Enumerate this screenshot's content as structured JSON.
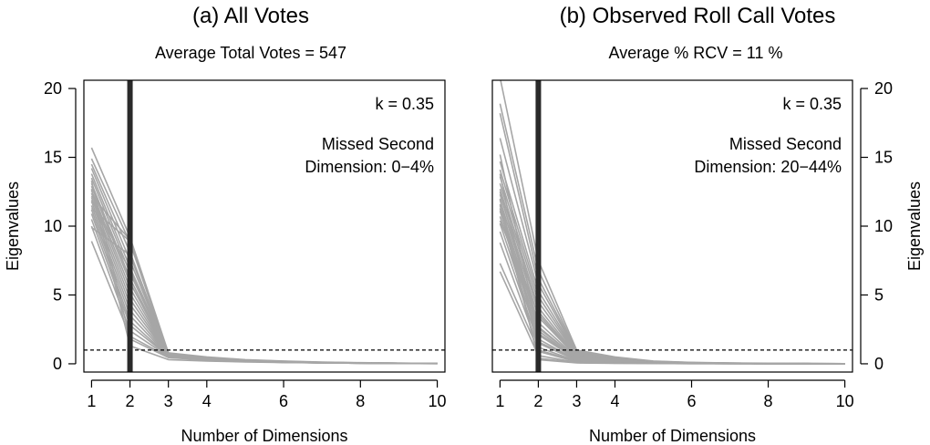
{
  "chart_data": [
    {
      "type": "line",
      "title": "(a) All Votes",
      "subtitle": "Average Total Votes  =  547",
      "xlabel": "Number of Dimensions",
      "ylabel": "Eigenvalues",
      "xlim": [
        0.8,
        10.2
      ],
      "ylim": [
        -0.6,
        20.6
      ],
      "xticks": [
        1,
        2,
        3,
        4,
        6,
        8,
        10
      ],
      "yticks": [
        0,
        5,
        10,
        15,
        20
      ],
      "yaxis_side": "left",
      "reference_line_y": 1,
      "highlight_dimension_x": 2,
      "annotation_k": "k =  0.35",
      "annotation_missed": [
        "Missed Second",
        "Dimension:  0−4%"
      ],
      "line_color": "#a6a6a6",
      "highlight_color": "#2a2a2a",
      "x": [
        1,
        2,
        3,
        4,
        5,
        6,
        7,
        8,
        9,
        10
      ],
      "series": [
        {
          "values": [
            15.7,
            9.2,
            0.8,
            0.5,
            0.3,
            0.2,
            0.12,
            0.08,
            0.05,
            0.03
          ]
        },
        {
          "values": [
            14.9,
            8.8,
            0.7,
            0.45,
            0.28,
            0.18,
            0.11,
            0.07,
            0.05,
            0.03
          ]
        },
        {
          "values": [
            14.5,
            8.1,
            0.75,
            0.42,
            0.26,
            0.17,
            0.1,
            0.07,
            0.04,
            0.03
          ]
        },
        {
          "values": [
            14.2,
            7.5,
            0.7,
            0.4,
            0.25,
            0.16,
            0.1,
            0.06,
            0.04,
            0.02
          ]
        },
        {
          "values": [
            13.8,
            7.0,
            0.72,
            0.4,
            0.25,
            0.15,
            0.09,
            0.06,
            0.04,
            0.02
          ]
        },
        {
          "values": [
            13.5,
            6.6,
            0.68,
            0.38,
            0.24,
            0.15,
            0.09,
            0.06,
            0.04,
            0.02
          ]
        },
        {
          "values": [
            13.1,
            6.2,
            0.66,
            0.38,
            0.23,
            0.14,
            0.09,
            0.06,
            0.03,
            0.02
          ]
        },
        {
          "values": [
            12.9,
            5.9,
            0.65,
            0.36,
            0.22,
            0.14,
            0.09,
            0.05,
            0.03,
            0.02
          ]
        },
        {
          "values": [
            12.6,
            5.5,
            0.64,
            0.35,
            0.22,
            0.13,
            0.08,
            0.05,
            0.03,
            0.02
          ]
        },
        {
          "values": [
            12.4,
            5.1,
            0.62,
            0.35,
            0.21,
            0.13,
            0.08,
            0.05,
            0.03,
            0.02
          ]
        },
        {
          "values": [
            12.1,
            4.7,
            0.6,
            0.34,
            0.2,
            0.13,
            0.08,
            0.05,
            0.03,
            0.02
          ]
        },
        {
          "values": [
            11.8,
            4.3,
            0.6,
            0.33,
            0.2,
            0.12,
            0.08,
            0.05,
            0.03,
            0.02
          ]
        },
        {
          "values": [
            11.5,
            3.9,
            0.58,
            0.32,
            0.19,
            0.12,
            0.07,
            0.05,
            0.03,
            0.02
          ]
        },
        {
          "values": [
            11.2,
            3.5,
            0.56,
            0.31,
            0.19,
            0.12,
            0.07,
            0.04,
            0.03,
            0.02
          ]
        },
        {
          "values": [
            10.9,
            3.1,
            0.55,
            0.3,
            0.18,
            0.11,
            0.07,
            0.04,
            0.03,
            0.02
          ]
        },
        {
          "values": [
            10.5,
            2.8,
            0.54,
            0.3,
            0.18,
            0.11,
            0.07,
            0.04,
            0.03,
            0.02
          ]
        },
        {
          "values": [
            10.0,
            2.4,
            0.52,
            0.29,
            0.17,
            0.11,
            0.07,
            0.04,
            0.02,
            0.02
          ]
        },
        {
          "values": [
            11.3,
            8.9,
            0.7,
            0.4,
            0.24,
            0.15,
            0.09,
            0.06,
            0.04,
            0.02
          ]
        },
        {
          "values": [
            12.2,
            9.0,
            0.74,
            0.42,
            0.25,
            0.16,
            0.1,
            0.06,
            0.04,
            0.02
          ]
        },
        {
          "values": [
            9.9,
            7.9,
            0.66,
            0.38,
            0.22,
            0.14,
            0.09,
            0.05,
            0.03,
            0.02
          ]
        },
        {
          "values": [
            8.9,
            2.0,
            0.5,
            0.28,
            0.17,
            0.1,
            0.06,
            0.04,
            0.02,
            0.02
          ]
        },
        {
          "values": [
            12.7,
            1.3,
            0.3,
            0.2,
            0.13,
            0.09,
            0.06,
            0.04,
            0.02,
            0.01
          ]
        },
        {
          "values": [
            13.3,
            1.8,
            0.45,
            0.27,
            0.16,
            0.1,
            0.06,
            0.04,
            0.02,
            0.01
          ]
        },
        {
          "values": [
            11.9,
            6.8,
            0.63,
            0.35,
            0.21,
            0.13,
            0.08,
            0.05,
            0.03,
            0.02
          ]
        }
      ]
    },
    {
      "type": "line",
      "title": "(b) Observed Roll Call Votes",
      "subtitle": "Average % RCV  =  11 %",
      "xlabel": "Number of Dimensions",
      "ylabel": "Eigenvalues",
      "xlim": [
        0.8,
        10.2
      ],
      "ylim": [
        -0.6,
        20.6
      ],
      "xticks": [
        1,
        2,
        3,
        4,
        6,
        8,
        10
      ],
      "yticks": [
        0,
        5,
        10,
        15,
        20
      ],
      "yaxis_side": "right",
      "reference_line_y": 1,
      "highlight_dimension_x": 2,
      "annotation_k": "k =  0.35",
      "annotation_missed": [
        "Missed Second",
        "Dimension: 20−44%"
      ],
      "line_color": "#a6a6a6",
      "highlight_color": "#2a2a2a",
      "x": [
        1,
        2,
        3,
        4,
        5,
        6,
        7,
        8,
        9,
        10
      ],
      "series": [
        {
          "values": [
            20.8,
            7.5,
            1.0,
            0.5,
            0.2,
            0.1,
            0.06,
            0.04,
            0.02,
            0.01
          ]
        },
        {
          "values": [
            18.9,
            6.8,
            0.9,
            0.45,
            0.18,
            0.09,
            0.05,
            0.03,
            0.02,
            0.01
          ]
        },
        {
          "values": [
            18.2,
            6.2,
            0.85,
            0.4,
            0.16,
            0.08,
            0.05,
            0.03,
            0.02,
            0.01
          ]
        },
        {
          "values": [
            16.4,
            5.8,
            0.8,
            0.38,
            0.15,
            0.08,
            0.05,
            0.03,
            0.02,
            0.01
          ]
        },
        {
          "values": [
            14.7,
            5.3,
            0.75,
            0.35,
            0.14,
            0.07,
            0.04,
            0.03,
            0.02,
            0.01
          ]
        },
        {
          "values": [
            14.1,
            4.9,
            0.7,
            0.32,
            0.13,
            0.07,
            0.04,
            0.02,
            0.01,
            0.01
          ]
        },
        {
          "values": [
            13.6,
            4.5,
            0.65,
            0.3,
            0.12,
            0.06,
            0.04,
            0.02,
            0.01,
            0.01
          ]
        },
        {
          "values": [
            13.1,
            4.1,
            0.6,
            0.28,
            0.11,
            0.06,
            0.03,
            0.02,
            0.01,
            0.01
          ]
        },
        {
          "values": [
            12.7,
            3.8,
            0.55,
            0.26,
            0.1,
            0.05,
            0.03,
            0.02,
            0.01,
            0.01
          ]
        },
        {
          "values": [
            12.3,
            3.4,
            0.5,
            0.24,
            0.09,
            0.05,
            0.03,
            0.02,
            0.01,
            0.01
          ]
        },
        {
          "values": [
            11.9,
            3.0,
            0.45,
            0.22,
            0.09,
            0.05,
            0.03,
            0.02,
            0.01,
            0.01
          ]
        },
        {
          "values": [
            11.5,
            2.7,
            0.4,
            0.2,
            0.08,
            0.04,
            0.03,
            0.02,
            0.01,
            0.01
          ]
        },
        {
          "values": [
            11.1,
            2.4,
            0.36,
            0.18,
            0.07,
            0.04,
            0.02,
            0.01,
            0.01,
            0.01
          ]
        },
        {
          "values": [
            10.7,
            2.1,
            0.32,
            0.16,
            0.07,
            0.04,
            0.02,
            0.01,
            0.01,
            0.01
          ]
        },
        {
          "values": [
            10.2,
            1.8,
            0.28,
            0.14,
            0.06,
            0.03,
            0.02,
            0.01,
            0.01,
            0.01
          ]
        },
        {
          "values": [
            9.6,
            1.5,
            0.25,
            0.12,
            0.05,
            0.03,
            0.02,
            0.01,
            0.01,
            0.0
          ]
        },
        {
          "values": [
            8.8,
            1.2,
            0.2,
            0.1,
            0.05,
            0.03,
            0.02,
            0.01,
            0.01,
            0.0
          ]
        },
        {
          "values": [
            7.3,
            1.0,
            0.18,
            0.09,
            0.04,
            0.02,
            0.01,
            0.01,
            0.0,
            0.0
          ]
        },
        {
          "values": [
            6.7,
            0.6,
            0.1,
            0.06,
            0.03,
            0.02,
            0.01,
            0.01,
            0.0,
            0.0
          ]
        },
        {
          "values": [
            12.0,
            0.3,
            0.06,
            0.03,
            0.02,
            0.01,
            0.01,
            0.0,
            0.0,
            0.0
          ]
        },
        {
          "values": [
            13.8,
            0.9,
            0.15,
            0.08,
            0.04,
            0.02,
            0.01,
            0.01,
            0.0,
            0.0
          ]
        },
        {
          "values": [
            11.6,
            1.6,
            0.3,
            0.15,
            0.06,
            0.03,
            0.02,
            0.01,
            0.01,
            0.0
          ]
        },
        {
          "values": [
            12.5,
            2.6,
            0.42,
            0.2,
            0.08,
            0.04,
            0.02,
            0.01,
            0.01,
            0.0
          ]
        },
        {
          "values": [
            10.4,
            3.6,
            0.52,
            0.25,
            0.1,
            0.05,
            0.03,
            0.02,
            0.01,
            0.01
          ]
        },
        {
          "values": [
            15.2,
            2.2,
            0.38,
            0.18,
            0.07,
            0.04,
            0.02,
            0.01,
            0.01,
            0.0
          ]
        },
        {
          "values": [
            11.3,
            0.4,
            0.08,
            0.04,
            0.02,
            0.01,
            0.01,
            0.0,
            0.0,
            0.0
          ]
        }
      ]
    }
  ]
}
